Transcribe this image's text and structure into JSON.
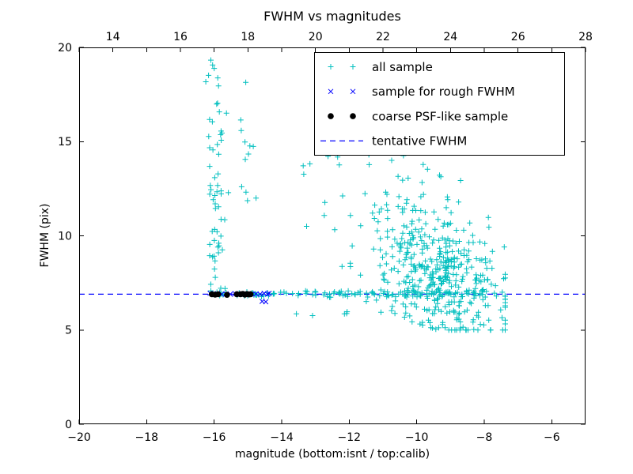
{
  "chart_data": {
    "type": "scatter",
    "title": "FWHM vs magnitudes",
    "xlabel": "magnitude (bottom:isnt / top:calib)",
    "ylabel": "FWHM (pix)",
    "x_axis": {
      "range": [
        -20,
        -5
      ],
      "ticks": [
        {
          "v": -20,
          "label": "−20"
        },
        {
          "v": -18,
          "label": "−18"
        },
        {
          "v": -16,
          "label": "−16"
        },
        {
          "v": -14,
          "label": "−14"
        },
        {
          "v": -12,
          "label": "−12"
        },
        {
          "v": -10,
          "label": "−10"
        },
        {
          "v": -8,
          "label": "−8"
        },
        {
          "v": -6,
          "label": "−6"
        }
      ]
    },
    "top_axis": {
      "offset_from_bottom": 33,
      "ticks": [
        {
          "v": 14,
          "label": "14"
        },
        {
          "v": 16,
          "label": "16"
        },
        {
          "v": 18,
          "label": "18"
        },
        {
          "v": 20,
          "label": "20"
        },
        {
          "v": 22,
          "label": "22"
        },
        {
          "v": 24,
          "label": "24"
        },
        {
          "v": 26,
          "label": "26"
        },
        {
          "v": 28,
          "label": "28"
        }
      ]
    },
    "y_axis": {
      "range": [
        0,
        20
      ],
      "ticks": [
        {
          "v": 0,
          "label": "0"
        },
        {
          "v": 5,
          "label": "5"
        },
        {
          "v": 10,
          "label": "10"
        },
        {
          "v": 15,
          "label": "15"
        },
        {
          "v": 20,
          "label": "20"
        }
      ]
    },
    "tentative_fwhm_y": 6.9,
    "seed": 1234567,
    "colors": {
      "all_sample": "#00bfbf",
      "rough_fwhm": "#0000ff",
      "psf_like": "#000000",
      "tentative_line": "#0000ff"
    },
    "legend": {
      "position": "upper right",
      "entries": [
        {
          "label": "all sample",
          "marker": "plus",
          "color_key": "all_sample"
        },
        {
          "label": "sample for rough FWHM",
          "marker": "x",
          "color_key": "rough_fwhm"
        },
        {
          "label": "coarse PSF-like sample",
          "marker": "dot",
          "color_key": "psf_like"
        },
        {
          "label": "tentative FWHM",
          "marker": "dashed",
          "color_key": "tentative_line"
        }
      ]
    },
    "series": {
      "all_sample": {
        "marker": "plus",
        "color_key": "all_sample",
        "clusters": [
          {
            "name": "vertical-plume",
            "n": 60,
            "x": {
              "dist": "normal",
              "mean": -15.95,
              "sd": 0.15,
              "clip": [
                -16.32,
                -15.58
              ]
            },
            "y": {
              "dist": "uniform",
              "min": 7.05,
              "max": 19.9
            }
          },
          {
            "name": "plume-right-tail",
            "n": 12,
            "x": {
              "dist": "normal",
              "mean": -15.08,
              "sd": 0.18,
              "clip": [
                -15.5,
                -14.7
              ]
            },
            "y": {
              "dist": "uniform",
              "min": 11.3,
              "max": 18.6
            }
          },
          {
            "name": "fwhm-band",
            "n": 130,
            "x": {
              "dist": "uniform",
              "min": -16.1,
              "max": -7.95
            },
            "y": {
              "dist": "normal",
              "mean": 6.92,
              "sd": 0.09,
              "clip": [
                6.62,
                7.25
              ]
            }
          },
          {
            "name": "bright-cloud",
            "n": 420,
            "x": {
              "dist": "normal",
              "mean": -9.35,
              "sd": 0.95,
              "clip": [
                -12.4,
                -7.38
              ]
            },
            "y": {
              "dist": "normal",
              "mean": 8.0,
              "sd": 1.75,
              "clip": [
                5.0,
                15.6
              ]
            },
            "y_slope": -0.55
          },
          {
            "name": "cloud-upper-halo",
            "n": 30,
            "x": {
              "dist": "normal",
              "mean": -9.9,
              "sd": 0.6,
              "clip": [
                -11.4,
                -8.7
              ]
            },
            "y": {
              "dist": "uniform",
              "min": 11.2,
              "max": 15.6
            }
          },
          {
            "name": "sparse-mid",
            "n": 20,
            "x": {
              "dist": "uniform",
              "min": -13.4,
              "max": -10.5
            },
            "y": {
              "dist": "uniform",
              "min": 8.1,
              "max": 14.7
            }
          },
          {
            "name": "sparse-low",
            "n": 8,
            "x": {
              "dist": "uniform",
              "min": -13.6,
              "max": -10.6
            },
            "y": {
              "dist": "uniform",
              "min": 5.5,
              "max": 6.6
            }
          }
        ]
      },
      "rough_fwhm": {
        "marker": "x",
        "color_key": "rough_fwhm",
        "points": [
          [
            -16.12,
            6.95
          ],
          [
            -16.02,
            6.9
          ],
          [
            -15.9,
            6.93
          ],
          [
            -15.78,
            6.9
          ],
          [
            -15.65,
            6.92
          ],
          [
            -15.52,
            6.9
          ],
          [
            -15.38,
            6.93
          ],
          [
            -15.27,
            6.9
          ],
          [
            -15.17,
            6.92
          ],
          [
            -15.08,
            6.9
          ],
          [
            -14.98,
            6.93
          ],
          [
            -14.88,
            6.9
          ],
          [
            -14.76,
            6.92
          ],
          [
            -14.64,
            6.9
          ],
          [
            -14.52,
            6.95
          ],
          [
            -14.42,
            6.9
          ],
          [
            -14.37,
            6.95
          ],
          [
            -14.58,
            6.52
          ],
          [
            -14.47,
            6.5
          ]
        ]
      },
      "psf_like": {
        "marker": "dot",
        "color_key": "psf_like",
        "points": [
          [
            -16.07,
            6.9
          ],
          [
            -15.97,
            6.88
          ],
          [
            -15.88,
            6.9
          ],
          [
            -15.62,
            6.87
          ],
          [
            -15.33,
            6.9
          ],
          [
            -15.22,
            6.9
          ],
          [
            -15.15,
            6.92
          ],
          [
            -15.09,
            6.88
          ],
          [
            -15.03,
            6.91
          ],
          [
            -14.97,
            6.89
          ],
          [
            -14.92,
            6.9
          ]
        ]
      }
    }
  }
}
